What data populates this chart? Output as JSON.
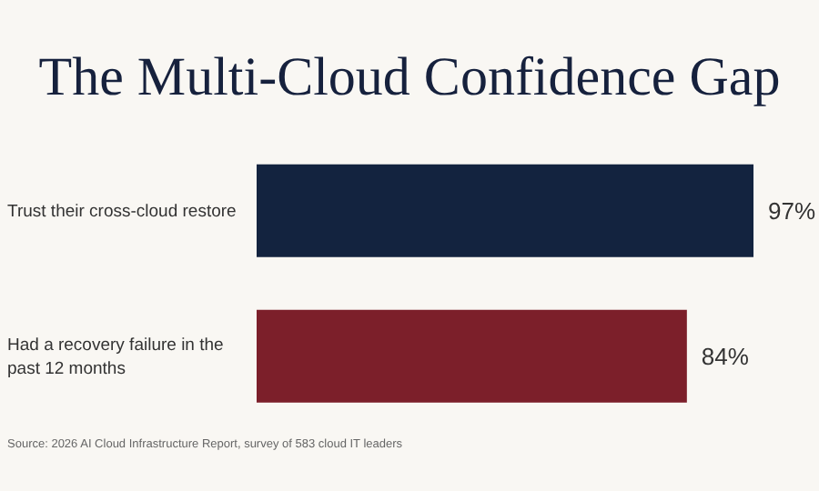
{
  "chart_data": {
    "type": "bar",
    "orientation": "horizontal",
    "title": "The Multi-Cloud Confidence Gap",
    "categories": [
      "Trust their cross-cloud restore",
      "Had a recovery failure in the past 12 months"
    ],
    "values": [
      97,
      84
    ],
    "colors": [
      "#13233f",
      "#7c1f2a"
    ],
    "value_labels": [
      "97%",
      "84%"
    ],
    "tick_labels": "y",
    "grid": false,
    "annotations": [
      "Source: 2026 AI Cloud Infrastructure Report, survey of 583 cloud IT leaders"
    ]
  }
}
